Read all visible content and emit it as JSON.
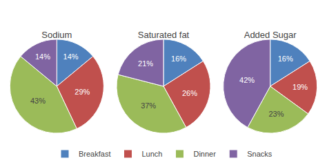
{
  "chart_data": [
    {
      "type": "pie",
      "title": "Sodium",
      "categories": [
        "Breakfast",
        "Lunch",
        "Dinner",
        "Snacks"
      ],
      "values": [
        14,
        29,
        43,
        14
      ],
      "value_labels": [
        "14%",
        "29%",
        "43%",
        "14%"
      ],
      "colors": [
        "#4f81bd",
        "#c0504d",
        "#9bbb59",
        "#8064a2"
      ],
      "data_labels": true,
      "legend": "bottom"
    },
    {
      "type": "pie",
      "title": "Saturated fat",
      "categories": [
        "Breakfast",
        "Lunch",
        "Dinner",
        "Snacks"
      ],
      "values": [
        16,
        26,
        37,
        21
      ],
      "value_labels": [
        "16%",
        "26%",
        "37%",
        "21%"
      ],
      "colors": [
        "#4f81bd",
        "#c0504d",
        "#9bbb59",
        "#8064a2"
      ],
      "data_labels": true,
      "legend": "bottom"
    },
    {
      "type": "pie",
      "title": "Added Sugar",
      "categories": [
        "Breakfast",
        "Lunch",
        "Dinner",
        "Snacks"
      ],
      "values": [
        16,
        19,
        23,
        42
      ],
      "value_labels": [
        "16%",
        "19%",
        "23%",
        "42%"
      ],
      "colors": [
        "#4f81bd",
        "#c0504d",
        "#9bbb59",
        "#8064a2"
      ],
      "data_labels": true,
      "legend": "bottom"
    }
  ]
}
